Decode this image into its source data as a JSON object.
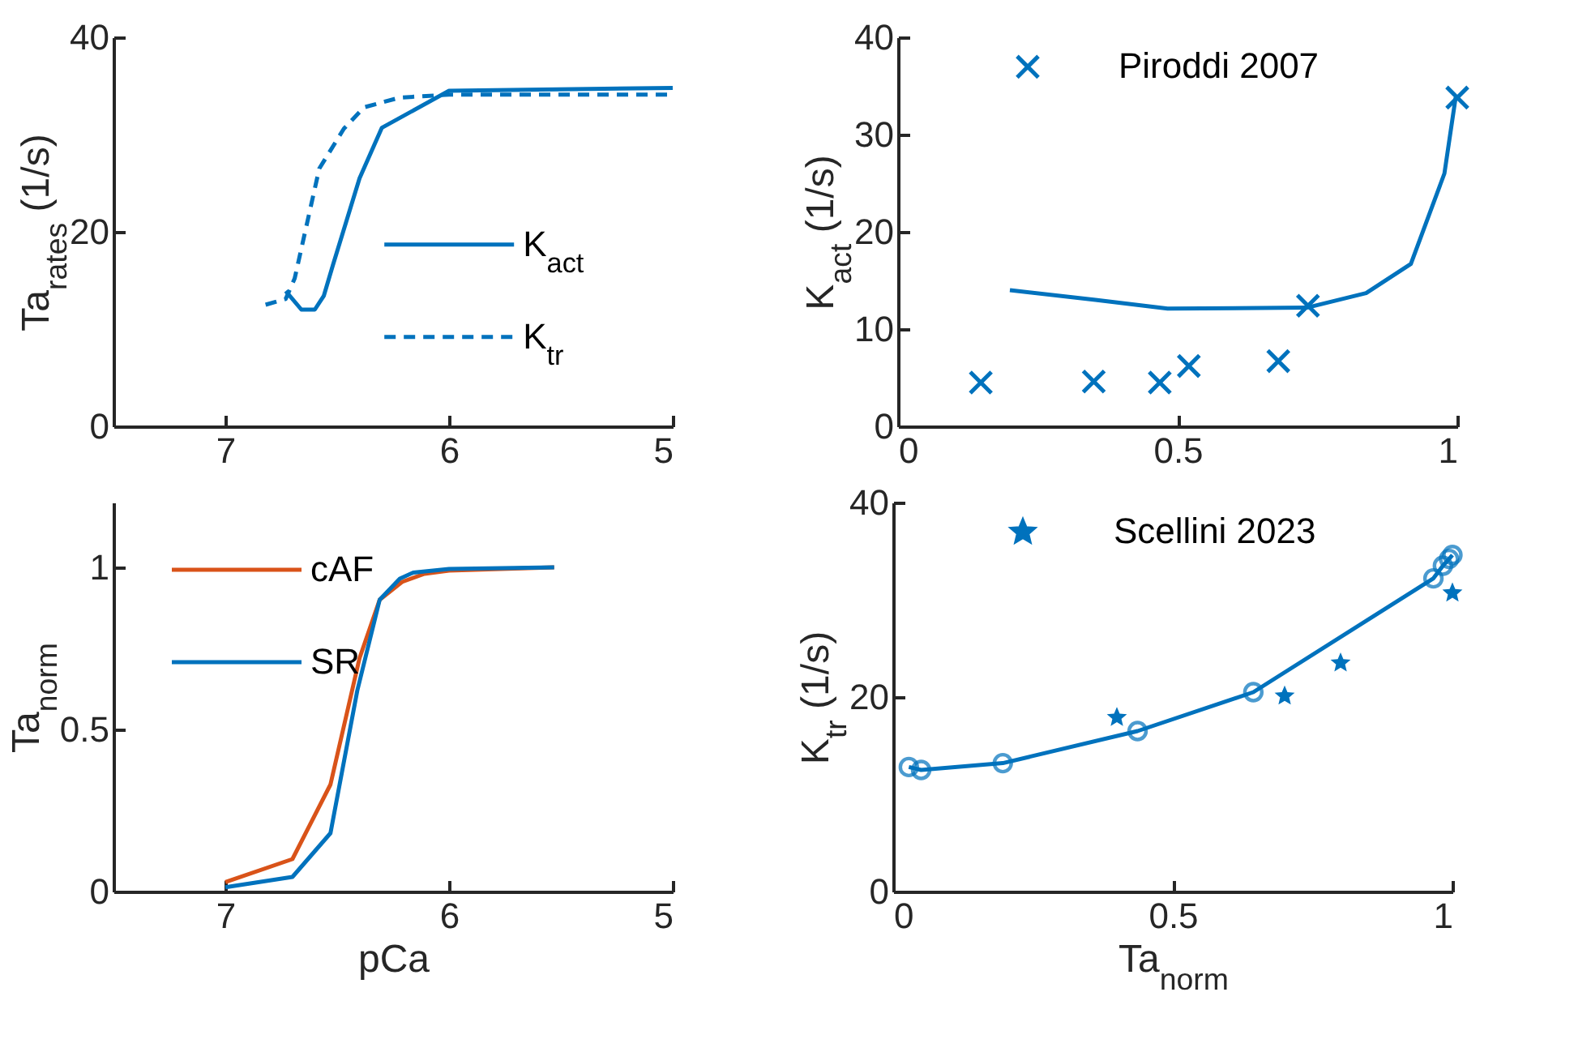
{
  "chart_data": [
    {
      "type": "line",
      "ylabel": "Ta$_{rates}$ (1/s)",
      "xlim": [
        7.5,
        5
      ],
      "xticks": [
        7,
        6,
        5
      ],
      "ylim": [
        0,
        40
      ],
      "yticks": [
        0,
        20,
        40
      ],
      "legend": "right",
      "grid": false,
      "series": [
        {
          "name": "K$_{act}$",
          "color": "#0072bd",
          "line_style": "solid",
          "x": [
            6.73,
            6.66,
            6.6,
            6.56,
            6.52,
            6.4,
            6.3,
            6.0,
            5.0
          ],
          "values": [
            13.9,
            12.0,
            12.0,
            13.4,
            16.5,
            25.5,
            30.7,
            34.5,
            34.8
          ]
        },
        {
          "name": "K$_{tr}$",
          "color": "#0072bd",
          "line_style": "dashed",
          "x": [
            6.82,
            6.73,
            6.69,
            6.58,
            6.47,
            6.38,
            6.22,
            6.0,
            5.0
          ],
          "values": [
            12.5,
            13.1,
            15.2,
            26.5,
            30.6,
            32.8,
            33.8,
            34.1,
            34.1
          ]
        }
      ]
    },
    {
      "type": "line",
      "ylabel": "K$_{act}$ (1/s)",
      "xlim": [
        0,
        1
      ],
      "xticks": [
        0,
        0.5,
        1
      ],
      "ylim": [
        0,
        40
      ],
      "yticks": [
        0,
        10,
        20,
        30,
        40
      ],
      "legend": "top",
      "grid": false,
      "series": [
        {
          "color": "#0072bd",
          "marker": "none",
          "x": [
            0.2,
            0.353,
            0.482,
            0.731,
            0.837,
            0.917,
            0.977,
            0.997
          ],
          "values": [
            14.0,
            13.0,
            12.1,
            12.2,
            13.7,
            16.7,
            26.0,
            33.8
          ]
        },
        {
          "type": "scatter",
          "name": "Piroddi 2007",
          "color": "#0072bd",
          "marker": "cross",
          "x": [
            0.148,
            0.35,
            0.468,
            0.52,
            0.68,
            0.733,
            1.0
          ],
          "values": [
            4.5,
            4.6,
            4.5,
            6.2,
            6.7,
            12.4,
            33.8
          ]
        }
      ]
    },
    {
      "type": "line",
      "xlabel": "pCa",
      "ylabel": "Ta$_{norm}$",
      "xlim": [
        7.5,
        5
      ],
      "xticks": [
        7,
        6,
        5
      ],
      "ylim": [
        0,
        1.2
      ],
      "yticks": [
        0,
        0.5,
        1
      ],
      "legend": "top left",
      "grid": false,
      "series": [
        {
          "name": "cAF",
          "color": "#d95319",
          "line_style": "solid",
          "x": [
            7.0,
            6.7,
            6.53,
            6.4,
            6.31,
            6.21,
            6.11,
            6.0,
            5.53
          ],
          "values": [
            0.029,
            0.1,
            0.33,
            0.72,
            0.9,
            0.955,
            0.98,
            0.99,
            1.0
          ]
        },
        {
          "name": "SR",
          "color": "#0072bd",
          "line_style": "solid",
          "x": [
            7.0,
            6.7,
            6.53,
            6.41,
            6.31,
            6.22,
            6.16,
            6.0,
            5.53
          ],
          "values": [
            0.013,
            0.045,
            0.18,
            0.62,
            0.9,
            0.965,
            0.984,
            0.995,
            1.0
          ]
        }
      ]
    },
    {
      "type": "line",
      "xlabel": "Ta$_{norm}$",
      "ylabel": "K$_{tr}$ (1/s)",
      "xlim": [
        0,
        1
      ],
      "xticks": [
        0,
        0.5,
        1
      ],
      "ylim": [
        0,
        40
      ],
      "yticks": [
        0,
        20,
        40
      ],
      "legend": "top",
      "grid": false,
      "series": [
        {
          "color": "#0072bd",
          "marker": "circle",
          "x": [
            0.028,
            0.05,
            0.196,
            0.437,
            0.644,
            0.966,
            0.983,
            0.994,
            1.0
          ],
          "values": [
            12.8,
            12.5,
            13.2,
            16.5,
            20.5,
            32.2,
            33.5,
            34.2,
            34.6
          ]
        },
        {
          "type": "scatter",
          "name": "Scellini 2023",
          "color": "#0072bd",
          "marker": "star",
          "x": [
            0.4,
            0.7,
            0.8,
            1.0
          ],
          "values": [
            17.9,
            20.1,
            23.5,
            30.7
          ]
        }
      ]
    }
  ]
}
